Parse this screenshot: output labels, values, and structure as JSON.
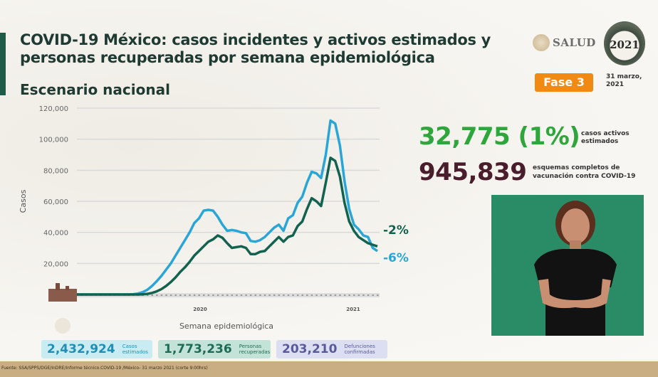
{
  "header": {
    "title": "COVID-19 México: casos incidentes y activos estimados y personas recuperadas por semana epidemiológica",
    "subtitle": "Escenario nacional",
    "logo_text": "SALUD",
    "emblem_year": "2021",
    "phase_badge": "Fase 3",
    "date_line1": "31 marzo,",
    "date_line2": "2021"
  },
  "kpis": {
    "active": {
      "value": "32,775 (1%)",
      "label_line1": "casos activos",
      "label_line2": "estimados",
      "color": "#2fa63b"
    },
    "vaccination": {
      "value": "945,839",
      "label_line1": "esquemas completos de",
      "label_line2": "vacunación contra COVID-19",
      "color": "#4a1d2c"
    }
  },
  "summary": [
    {
      "value": "2,432,924",
      "label_line1": "Casos",
      "label_line2": "estimados",
      "bg": "#c9ecf2",
      "color": "#1f8fb5"
    },
    {
      "value": "1,773,236",
      "label_line1": "Personas",
      "label_line2": "recuperadas",
      "bg": "#c4e3d8",
      "color": "#1e6b55"
    },
    {
      "value": "203,210",
      "label_line1": "Defunciones",
      "label_line2": "confirmadas",
      "bg": "#dcdff2",
      "color": "#5a5a9a"
    }
  ],
  "footer": {
    "source": "Fuente: SSA/SPPS/DGE/InDRE/Informe técnico.COVID-19 /México- 31 marzo 2021 (corte 9:00hrs)"
  },
  "chart_data": {
    "type": "line",
    "title": "COVID-19 México: casos incidentes y activos estimados y personas recuperadas por semana epidemiológica",
    "xlabel": "Semana epidemiológica",
    "ylabel": "Casos",
    "ylim": [
      0,
      120000
    ],
    "yticks": [
      "20,000",
      "40,000",
      "60,000",
      "80,000",
      "100,000",
      "120,000"
    ],
    "x_year_labels": [
      "2020",
      "2021"
    ],
    "grid": true,
    "series": [
      {
        "name": "Casos incidentes estimados",
        "color": "#2aa6d6",
        "end_label": "-6%",
        "values": [
          0,
          0,
          0,
          0,
          0,
          0,
          0,
          0,
          0,
          0,
          0,
          0,
          200,
          600,
          1500,
          3000,
          5500,
          8500,
          12000,
          16000,
          20000,
          25000,
          30000,
          35000,
          40000,
          46000,
          49000,
          54000,
          54500,
          54000,
          50000,
          45000,
          41000,
          41500,
          41000,
          40000,
          39500,
          34500,
          34000,
          35000,
          37000,
          40000,
          43000,
          45000,
          41000,
          49000,
          51000,
          59000,
          63000,
          72000,
          79000,
          78000,
          75000,
          90000,
          112000,
          110000,
          96000,
          73000,
          55000,
          45000,
          42000,
          38000,
          37000,
          30000,
          28000
        ]
      },
      {
        "name": "Casos activos estimados",
        "color": "#12624f",
        "end_label": "-2%",
        "values": [
          0,
          0,
          0,
          0,
          0,
          0,
          0,
          0,
          0,
          0,
          0,
          0,
          0,
          0,
          100,
          400,
          1000,
          2000,
          3500,
          5500,
          8000,
          11000,
          14500,
          17500,
          21000,
          25000,
          28000,
          31000,
          34000,
          35500,
          38000,
          36500,
          33000,
          30000,
          30500,
          31000,
          30000,
          26000,
          26000,
          27500,
          28000,
          31000,
          34000,
          37000,
          34000,
          37000,
          38000,
          44000,
          47000,
          55000,
          62000,
          60000,
          57000,
          72000,
          88000,
          86000,
          76000,
          59000,
          47000,
          41000,
          37000,
          35000,
          33000,
          32000,
          31000
        ]
      }
    ]
  }
}
